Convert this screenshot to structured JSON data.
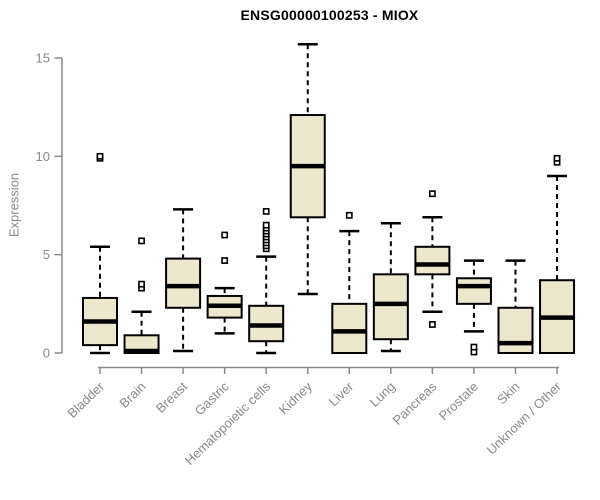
{
  "page": {
    "background": "#ffffff"
  },
  "chart_data": {
    "type": "boxplot",
    "title": "ENSG00000100253 - MIOX",
    "ylabel": "Expression",
    "xlabel": "",
    "yticks": [
      0,
      5,
      10,
      15
    ],
    "ylim": [
      0,
      15.8
    ],
    "grid": false,
    "legend": false,
    "categories": [
      "Bladder",
      "Brain",
      "Breast",
      "Gastric",
      "Hematopoietic cells",
      "Kidney",
      "Liver",
      "Lung",
      "Pancreas",
      "Prostate",
      "Skin",
      "Unknown / Other"
    ],
    "boxes": [
      {
        "category": "Bladder",
        "whisker_low": 0.0,
        "q1": 0.4,
        "median": 1.6,
        "q3": 2.8,
        "whisker_high": 5.4,
        "outliers": [
          9.9,
          10.0
        ]
      },
      {
        "category": "Brain",
        "whisker_low": 0.0,
        "q1": 0.0,
        "median": 0.1,
        "q3": 0.9,
        "whisker_high": 2.1,
        "outliers": [
          3.3,
          3.5,
          5.7
        ]
      },
      {
        "category": "Breast",
        "whisker_low": 0.1,
        "q1": 2.3,
        "median": 3.4,
        "q3": 4.8,
        "whisker_high": 7.3,
        "outliers": []
      },
      {
        "category": "Gastric",
        "whisker_low": 1.0,
        "q1": 1.8,
        "median": 2.4,
        "q3": 2.9,
        "whisker_high": 3.3,
        "outliers": [
          4.7,
          6.0
        ]
      },
      {
        "category": "Hematopoietic cells",
        "whisker_low": 0.0,
        "q1": 0.6,
        "median": 1.4,
        "q3": 2.4,
        "whisker_high": 4.9,
        "outliers": [
          5.3,
          5.45,
          5.6,
          5.75,
          5.9,
          6.05,
          6.2,
          6.35,
          6.5,
          7.2
        ]
      },
      {
        "category": "Kidney",
        "whisker_low": 3.0,
        "q1": 6.9,
        "median": 9.5,
        "q3": 12.1,
        "whisker_high": 15.7,
        "outliers": []
      },
      {
        "category": "Liver",
        "whisker_low": 0.0,
        "q1": 0.0,
        "median": 1.1,
        "q3": 2.5,
        "whisker_high": 6.2,
        "outliers": [
          7.0
        ]
      },
      {
        "category": "Lung",
        "whisker_low": 0.1,
        "q1": 0.7,
        "median": 2.5,
        "q3": 4.0,
        "whisker_high": 6.6,
        "outliers": []
      },
      {
        "category": "Pancreas",
        "whisker_low": 2.1,
        "q1": 4.0,
        "median": 4.5,
        "q3": 5.4,
        "whisker_high": 6.9,
        "outliers": [
          1.45,
          8.1
        ]
      },
      {
        "category": "Prostate",
        "whisker_low": 1.1,
        "q1": 2.5,
        "median": 3.4,
        "q3": 3.8,
        "whisker_high": 4.7,
        "outliers": [
          0.05,
          0.3
        ]
      },
      {
        "category": "Skin",
        "whisker_low": 0.0,
        "q1": 0.0,
        "median": 0.5,
        "q3": 2.3,
        "whisker_high": 4.7,
        "outliers": []
      },
      {
        "category": "Unknown / Other",
        "whisker_low": 0.0,
        "q1": 0.0,
        "median": 1.8,
        "q3": 3.7,
        "whisker_high": 9.0,
        "outliers": [
          9.7,
          9.9
        ]
      }
    ],
    "colors": {
      "box_fill": "#ede8cd",
      "box_border": "#000000",
      "median": "#000000",
      "whisker": "#000000",
      "outlier_fill": "#ffffff",
      "axis": "#8a8a8a",
      "title": "#000000"
    }
  }
}
